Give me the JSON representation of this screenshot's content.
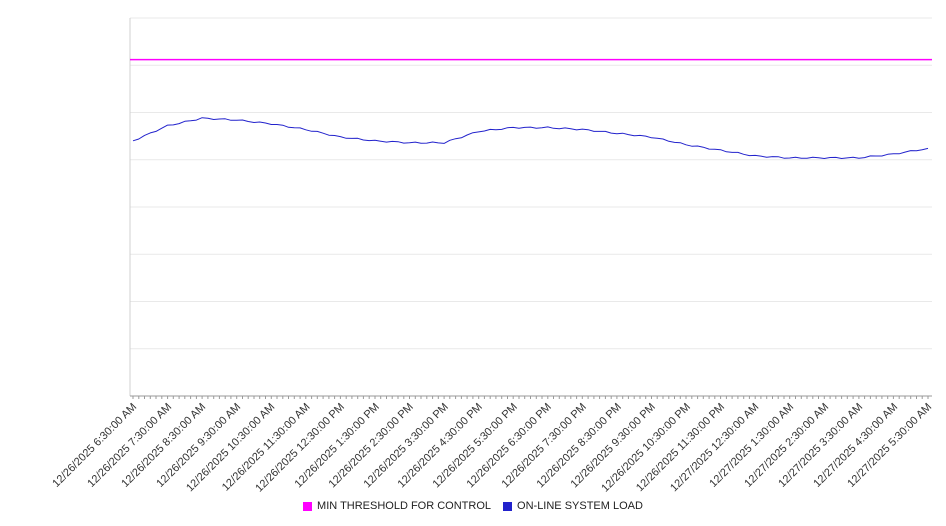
{
  "chart_data": {
    "type": "line",
    "x_labels": [
      "12/26/2025 6:30:00 AM",
      "12/26/2025 7:30:00 AM",
      "12/26/2025 8:30:00 AM",
      "12/26/2025 9:30:00 AM",
      "12/26/2025 10:30:00 AM",
      "12/26/2025 11:30:00 AM",
      "12/26/2025 12:30:00 PM",
      "12/26/2025 1:30:00 PM",
      "12/26/2025 2:30:00 PM",
      "12/26/2025 3:30:00 PM",
      "12/26/2025 4:30:00 PM",
      "12/26/2025 5:30:00 PM",
      "12/26/2025 6:30:00 PM",
      "12/26/2025 7:30:00 PM",
      "12/26/2025 8:30:00 PM",
      "12/26/2025 9:30:00 PM",
      "12/26/2025 10:30:00 PM",
      "12/26/2025 11:30:00 PM",
      "12/27/2025 12:30:00 AM",
      "12/27/2025 1:30:00 AM",
      "12/27/2025 2:30:00 AM",
      "12/27/2025 3:30:00 AM",
      "12/27/2025 4:30:00 AM",
      "12/27/2025 5:30:00 AM"
    ],
    "y_axis": {
      "min": 0,
      "max": 100,
      "gridline_step": 12.5,
      "tick_labels_visible": false
    },
    "series": [
      {
        "name": "MIN THRESHOLD FOR CONTROL",
        "type": "constant",
        "color": "#ff00ff",
        "value": 89
      },
      {
        "name": "ON-LINE SYSTEM LOAD",
        "type": "line",
        "color": "#2222cc",
        "values": [
          67.5,
          71.5,
          73.5,
          73,
          72,
          70.5,
          68.5,
          67.5,
          67,
          67,
          70,
          71,
          71,
          70.5,
          69.5,
          68.5,
          66.5,
          65,
          63.5,
          63,
          63,
          63,
          64,
          65.5
        ]
      }
    ],
    "legend_position": "bottom",
    "grid": true
  }
}
